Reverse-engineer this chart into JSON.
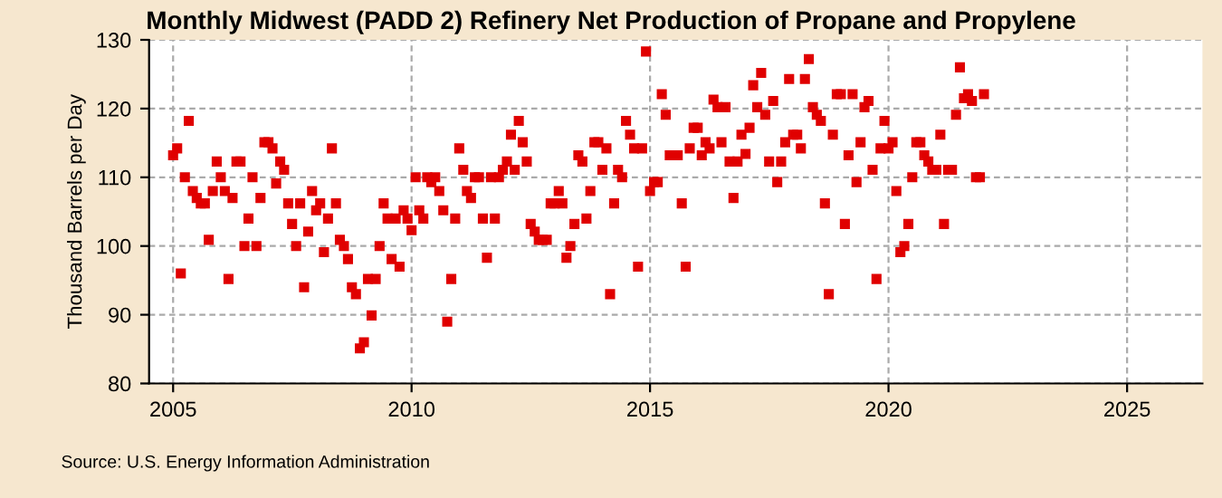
{
  "chart_data": {
    "type": "scatter",
    "title": "Monthly Midwest (PADD 2) Refinery Net Production of Propane and Propylene",
    "ylabel": "Thousand Barrels per Day",
    "annotations": [
      "Source: U.S. Energy Information Administration"
    ],
    "series": [
      {
        "color": "#e00000",
        "x": [
          "2005-01",
          "2005-02",
          "2005-03",
          "2005-04",
          "2005-05",
          "2005-06",
          "2005-07",
          "2005-08",
          "2005-09",
          "2005-10",
          "2005-11",
          "2005-12",
          "2006-01",
          "2006-02",
          "2006-03",
          "2006-04",
          "2006-05",
          "2006-06",
          "2006-07",
          "2006-08",
          "2006-09",
          "2006-10",
          "2006-11",
          "2006-12",
          "2007-01",
          "2007-02",
          "2007-03",
          "2007-04",
          "2007-05",
          "2007-06",
          "2007-07",
          "2007-08",
          "2007-09",
          "2007-10",
          "2007-11",
          "2007-12",
          "2008-01",
          "2008-02",
          "2008-03",
          "2008-04",
          "2008-05",
          "2008-06",
          "2008-07",
          "2008-08",
          "2008-09",
          "2008-10",
          "2008-11",
          "2008-12",
          "2009-01",
          "2009-02",
          "2009-03",
          "2009-04",
          "2009-05",
          "2009-06",
          "2009-07",
          "2009-08",
          "2009-09",
          "2009-10",
          "2009-11",
          "2009-12",
          "2010-01",
          "2010-02",
          "2010-03",
          "2010-04",
          "2010-05",
          "2010-06",
          "2010-07",
          "2010-08",
          "2010-09",
          "2010-10",
          "2010-11",
          "2010-12",
          "2011-01",
          "2011-02",
          "2011-03",
          "2011-04",
          "2011-05",
          "2011-06",
          "2011-07",
          "2011-08",
          "2011-09",
          "2011-10",
          "2011-11",
          "2011-12",
          "2012-01",
          "2012-02",
          "2012-03",
          "2012-04",
          "2012-05",
          "2012-06",
          "2012-07",
          "2012-08",
          "2012-09",
          "2012-10",
          "2012-11",
          "2012-12",
          "2013-01",
          "2013-02",
          "2013-03",
          "2013-04",
          "2013-05",
          "2013-06",
          "2013-07",
          "2013-08",
          "2013-09",
          "2013-10",
          "2013-11",
          "2013-12",
          "2014-01",
          "2014-02",
          "2014-03",
          "2014-04",
          "2014-05",
          "2014-06",
          "2014-07",
          "2014-08",
          "2014-09",
          "2014-10",
          "2014-11",
          "2014-12",
          "2015-01",
          "2015-02",
          "2015-03",
          "2015-04",
          "2015-05",
          "2015-06",
          "2015-07",
          "2015-08",
          "2015-09",
          "2015-10",
          "2015-11",
          "2015-12",
          "2016-01",
          "2016-02",
          "2016-03",
          "2016-04",
          "2016-05",
          "2016-06",
          "2016-07",
          "2016-08",
          "2016-09",
          "2016-10",
          "2016-11",
          "2016-12",
          "2017-01",
          "2017-02",
          "2017-03",
          "2017-04",
          "2017-05",
          "2017-06",
          "2017-07",
          "2017-08",
          "2017-09",
          "2017-10",
          "2017-11",
          "2017-12",
          "2018-01",
          "2018-02",
          "2018-03",
          "2018-04",
          "2018-05",
          "2018-06",
          "2018-07",
          "2018-08",
          "2018-09",
          "2018-10",
          "2018-11",
          "2018-12",
          "2019-01",
          "2019-02",
          "2019-03",
          "2019-04",
          "2019-05",
          "2019-06",
          "2019-07",
          "2019-08",
          "2019-09",
          "2019-10",
          "2019-11",
          "2019-12",
          "2020-01",
          "2020-02",
          "2020-03",
          "2020-04",
          "2020-05",
          "2020-06",
          "2020-07",
          "2020-08",
          "2020-09",
          "2020-10",
          "2020-11",
          "2020-12",
          "2021-01",
          "2021-02",
          "2021-03",
          "2021-04",
          "2021-05",
          "2021-06",
          "2021-07",
          "2021-08",
          "2021-09",
          "2021-10",
          "2021-11",
          "2021-12",
          "2022-01"
        ],
        "values": [
          113.2,
          114.2,
          96,
          110,
          118.2,
          108,
          107,
          106.2,
          106.2,
          100.9,
          108,
          112.3,
          110,
          108,
          95.2,
          107,
          112.3,
          112.3,
          100,
          104,
          110,
          100,
          107,
          115.1,
          115.1,
          114.2,
          109.1,
          112.3,
          111.1,
          106.2,
          103.2,
          100,
          106.2,
          94,
          102.1,
          108,
          105.2,
          106.2,
          99.1,
          104,
          114.2,
          106.2,
          100.9,
          100,
          98.1,
          94,
          93,
          85.1,
          86,
          95.2,
          89.9,
          95.2,
          100,
          106.2,
          104,
          98.1,
          104,
          97,
          105.2,
          104,
          102.3,
          110,
          105.2,
          104,
          110,
          109.3,
          110,
          108,
          105.2,
          89,
          95.2,
          104,
          114.2,
          111.1,
          108,
          107,
          110,
          110,
          104,
          98.3,
          110,
          104,
          110,
          111.1,
          112.3,
          116.2,
          111.1,
          118.2,
          115.1,
          112.3,
          103.2,
          102.1,
          100.9,
          100.9,
          100.9,
          106.2,
          106.2,
          108,
          106.2,
          98.3,
          100,
          103.2,
          113.2,
          112.3,
          104,
          108,
          115.1,
          115.1,
          111.1,
          114.2,
          93,
          106.2,
          111.1,
          110,
          118.2,
          116.2,
          114.2,
          97,
          114.2,
          128.3,
          108,
          109.3,
          109.3,
          122.1,
          119.1,
          113.2,
          null,
          113.2,
          106.2,
          97,
          114.2,
          117.2,
          117.2,
          113.2,
          115.1,
          114.2,
          121.3,
          120.2,
          115.1,
          120.2,
          112.3,
          107,
          112.3,
          116.2,
          113.4,
          117.2,
          123.4,
          120.2,
          125.2,
          119.1,
          112.3,
          121.1,
          109.3,
          112.3,
          115.1,
          124.3,
          116.2,
          116.2,
          114.2,
          124.3,
          127.2,
          120.2,
          119.1,
          118.2,
          106.2,
          93,
          116.2,
          122.1,
          122.1,
          103.2,
          113.2,
          122.1,
          109.3,
          115.1,
          120.2,
          121.1,
          111.1,
          95.2,
          114.2,
          118.2,
          114.2,
          115.1,
          108,
          99.1,
          100,
          103.2,
          110,
          115.1,
          115.1,
          113.2,
          112.3,
          111.1,
          111.1,
          116.2,
          103.2,
          111.1,
          111.1,
          119.1,
          126,
          121.5,
          122.1,
          121.1,
          110,
          110,
          122.1
        ]
      }
    ],
    "xlim": [
      "2004-07",
      "2026-08"
    ],
    "xticks": [
      "2005",
      "2010",
      "2015",
      "2020",
      "2025"
    ],
    "ylim": [
      80,
      130
    ],
    "yticks": [
      80,
      90,
      100,
      110,
      120,
      130
    ],
    "grid": true,
    "marker": "square"
  }
}
